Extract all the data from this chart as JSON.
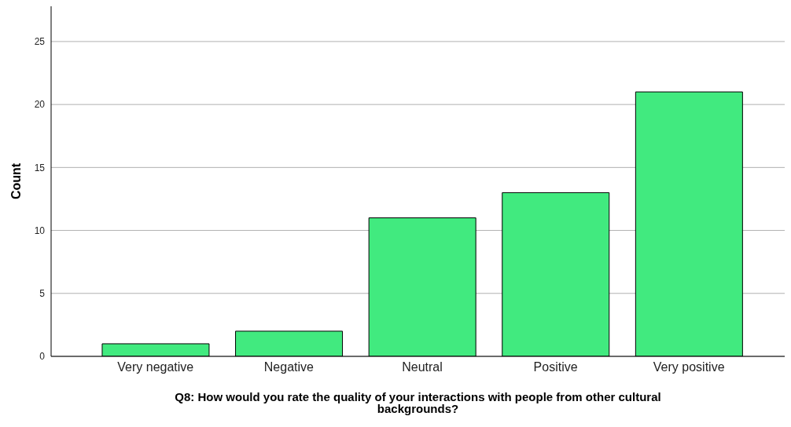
{
  "chart_data": {
    "type": "bar",
    "xlabel": "Q8: How would you rate the quality of your interactions with people from other cultural backgrounds?",
    "ylabel": "Count",
    "categories": [
      "Very negative",
      "Negative",
      "Neutral",
      "Positive",
      "Very positive"
    ],
    "values": [
      1,
      2,
      11,
      13,
      21
    ],
    "color": "#41ea7f",
    "ylim": [
      0,
      27.8
    ],
    "yticks": [
      0,
      5,
      10,
      15,
      20,
      25
    ],
    "grid": "y",
    "legend": false
  }
}
